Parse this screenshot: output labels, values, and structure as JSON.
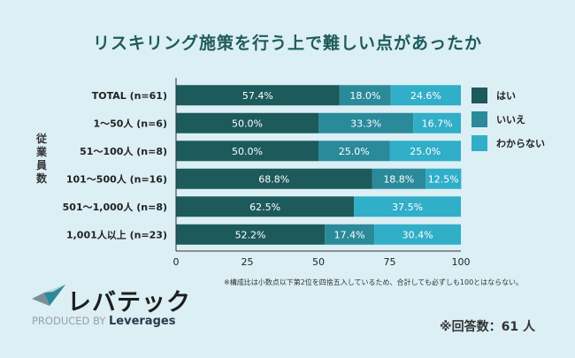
{
  "chart_data": {
    "type": "bar",
    "orientation": "horizontal",
    "stacked": true,
    "title": "リスキリング施策を行う上で難しい点があったか",
    "ylabel": "従業員数",
    "xlabel": "",
    "xlim": [
      0,
      100
    ],
    "xticks": [
      "0",
      "25",
      "50",
      "75",
      "100"
    ],
    "legend_position": "right",
    "categories": [
      "TOTAL (n=61)",
      "1〜50人 (n=6)",
      "51〜100人 (n=8)",
      "101〜500人 (n=16)",
      "501〜1,000人 (n=8)",
      "1,001人以上 (n=23)"
    ],
    "series": [
      {
        "name": "はい",
        "color": "#1d5a5c",
        "values": [
          57.4,
          50.0,
          50.0,
          68.8,
          62.5,
          52.2
        ],
        "labels": [
          "57.4%",
          "50.0%",
          "50.0%",
          "68.8%",
          "62.5%",
          "52.2%"
        ]
      },
      {
        "name": "いいえ",
        "color": "#2a8a9a",
        "values": [
          18.0,
          33.3,
          25.0,
          18.8,
          0,
          17.4
        ],
        "labels": [
          "18.0%",
          "33.3%",
          "25.0%",
          "18.8%",
          "",
          "17.4%"
        ]
      },
      {
        "name": "わからない",
        "color": "#31aec8",
        "values": [
          24.6,
          16.7,
          25.0,
          12.5,
          37.5,
          30.4
        ],
        "labels": [
          "24.6%",
          "16.7%",
          "25.0%",
          "12.5%",
          "37.5%",
          "30.4%"
        ]
      }
    ]
  },
  "footnote": "※構成比は小数点以下第2位を四捨五入しているため、合計しても必ずしも100とはならない。",
  "respondents": "※回答数：61 人",
  "logo": {
    "brand": "レバテック",
    "produced_by": "PRODUCED BY",
    "company": "Leverages"
  }
}
